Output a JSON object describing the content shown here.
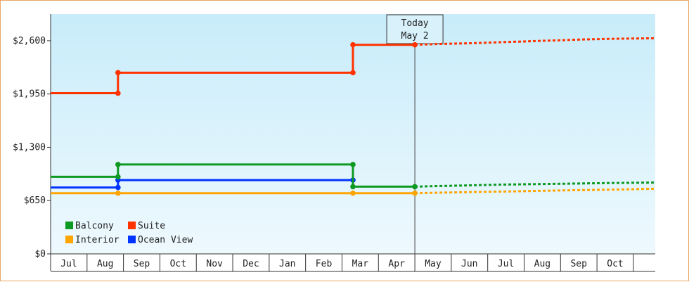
{
  "chart_data": {
    "type": "line",
    "title": "",
    "xlabel": "",
    "ylabel": "",
    "ylim": [
      0,
      2925
    ],
    "y_ticks": [
      {
        "value": 0,
        "label": "$0"
      },
      {
        "value": 650,
        "label": "$650"
      },
      {
        "value": 1300,
        "label": "$1,300"
      },
      {
        "value": 1950,
        "label": "$1,950"
      },
      {
        "value": 2600,
        "label": "$2,600"
      }
    ],
    "x_labels": [
      "Jul",
      "Aug",
      "Sep",
      "Oct",
      "Nov",
      "Dec",
      "Jan",
      "Feb",
      "Mar",
      "Apr",
      "May",
      "Jun",
      "Jul",
      "Aug",
      "Sep",
      "Oct"
    ],
    "x_range": [
      0,
      16.6
    ],
    "grid": false,
    "legend_position": "bottom-left",
    "today_marker": {
      "x": 10.0,
      "line1": "Today",
      "line2": "May 2"
    },
    "series": [
      {
        "name": "Balcony",
        "color": "#0d9922",
        "points": [
          [
            0,
            940
          ],
          [
            1.85,
            940
          ],
          [
            1.85,
            1090
          ],
          [
            8.3,
            1090
          ],
          [
            8.3,
            820
          ],
          [
            10.0,
            820
          ]
        ],
        "forecast": [
          [
            10.0,
            820
          ],
          [
            10.4,
            825
          ],
          [
            11.4,
            835
          ],
          [
            12.4,
            845
          ],
          [
            13.4,
            852
          ],
          [
            14.4,
            858
          ],
          [
            15.4,
            865
          ],
          [
            16.6,
            870
          ]
        ]
      },
      {
        "name": "Suite",
        "color": "#ff3300",
        "points": [
          [
            0,
            1960
          ],
          [
            1.85,
            1960
          ],
          [
            1.85,
            2210
          ],
          [
            8.3,
            2210
          ],
          [
            8.3,
            2550
          ],
          [
            10.0,
            2550
          ]
        ],
        "forecast": [
          [
            10.0,
            2550
          ],
          [
            10.6,
            2560
          ],
          [
            11.6,
            2570
          ],
          [
            12.6,
            2585
          ],
          [
            13.6,
            2600
          ],
          [
            14.6,
            2615
          ],
          [
            15.6,
            2625
          ],
          [
            16.6,
            2630
          ]
        ]
      },
      {
        "name": "Interior",
        "color": "#ffa500",
        "points": [
          [
            0,
            740
          ],
          [
            1.85,
            740
          ],
          [
            1.85,
            740
          ],
          [
            8.3,
            740
          ],
          [
            8.3,
            740
          ],
          [
            10.0,
            740
          ]
        ],
        "forecast": [
          [
            10.0,
            740
          ],
          [
            10.6,
            745
          ],
          [
            11.6,
            755
          ],
          [
            12.6,
            762
          ],
          [
            13.6,
            770
          ],
          [
            14.6,
            778
          ],
          [
            15.6,
            785
          ],
          [
            16.6,
            795
          ]
        ]
      },
      {
        "name": "Ocean View",
        "color": "#0033ff",
        "points": [
          [
            0,
            810
          ],
          [
            1.85,
            810
          ],
          [
            1.85,
            900
          ],
          [
            8.3,
            900
          ]
        ],
        "forecast": []
      }
    ]
  }
}
